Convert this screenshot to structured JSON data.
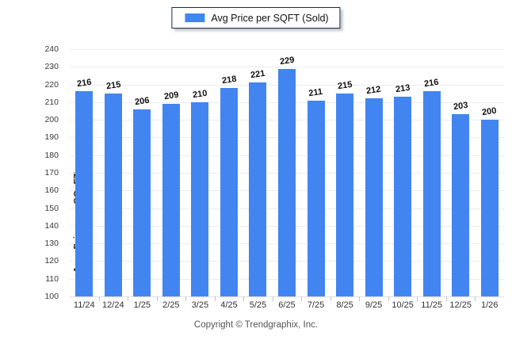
{
  "legend": {
    "label": "Avg Price per SQFT (Sold)"
  },
  "y_axis": {
    "title": "Avg. Price per SQ. FT."
  },
  "footer": {
    "copyright": "Copyright © Trendgraphix, Inc."
  },
  "colors": {
    "bar": "#4285f0",
    "gridline": "#ececec",
    "axis_text": "#3a3a3a",
    "value_label": "#111111",
    "legend_border": "#1b2a41"
  },
  "chart_data": {
    "type": "bar",
    "title": "Avg Price per SQFT (Sold)",
    "categories": [
      "11/24",
      "12/24",
      "1/25",
      "2/25",
      "3/25",
      "4/25",
      "5/25",
      "6/25",
      "7/25",
      "8/25",
      "9/25",
      "10/25",
      "11/25",
      "12/25",
      "1/26"
    ],
    "values": [
      216,
      215,
      206,
      209,
      210,
      218,
      221,
      229,
      211,
      215,
      212,
      213,
      216,
      203,
      200
    ],
    "xlabel": "",
    "ylabel": "Avg. Price per SQ. FT.",
    "ylim": [
      100,
      240
    ],
    "ytick_step": 10,
    "grid": true,
    "legend_position": "top-center",
    "footer": "Copyright © Trendgraphix, Inc."
  }
}
